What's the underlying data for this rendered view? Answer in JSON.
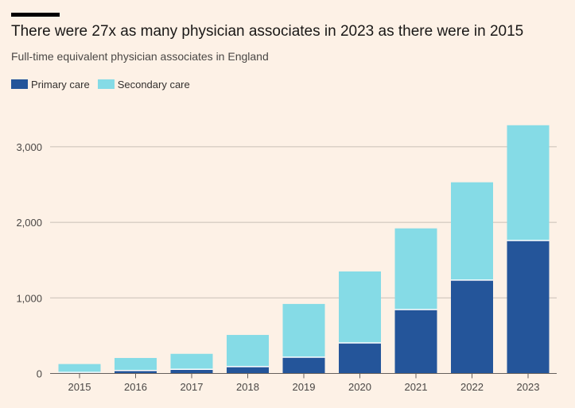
{
  "title": "There were 27x as many physician associates in 2023 as there were in 2015",
  "subtitle": "Full-time equivalent physician associates in England",
  "colors": {
    "primary": "#24559a",
    "secondary": "#85dbe6",
    "grid": "#c9c0b7",
    "axis": "#66605c"
  },
  "chart_data": {
    "type": "bar",
    "stacked": true,
    "categories": [
      "2015",
      "2016",
      "2017",
      "2018",
      "2019",
      "2020",
      "2021",
      "2022",
      "2023"
    ],
    "series": [
      {
        "name": "Primary care",
        "color": "#24559a",
        "values": [
          15,
          40,
          55,
          90,
          215,
          405,
          845,
          1235,
          1760
        ]
      },
      {
        "name": "Secondary care",
        "color": "#85dbe6",
        "values": [
          110,
          165,
          205,
          420,
          705,
          945,
          1075,
          1295,
          1525
        ]
      }
    ],
    "yticks": [
      0,
      1000,
      2000,
      3000
    ],
    "ytick_labels": [
      "0",
      "1,000",
      "2,000",
      "3,000"
    ],
    "ylim": [
      0,
      3500
    ],
    "legend": "top-left",
    "grid": true,
    "xlabel": "",
    "ylabel": ""
  }
}
